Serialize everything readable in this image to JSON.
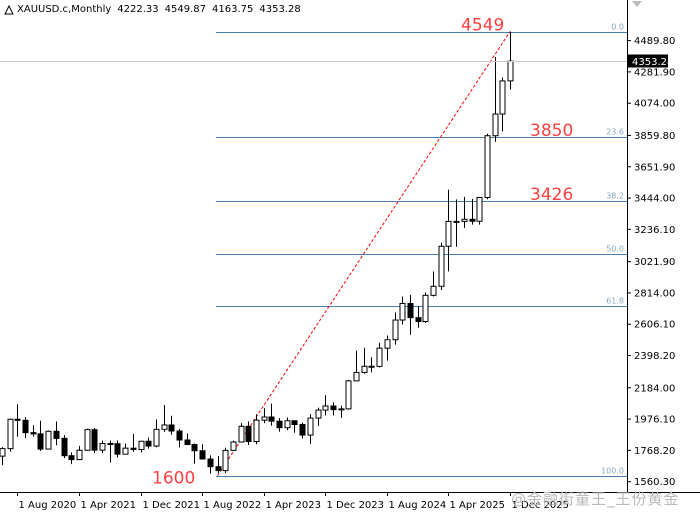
{
  "header": {
    "symbol_timeframe": "XAUUSD.c,Monthly",
    "open": "4222.33",
    "high": "4549.87",
    "low": "4163.75",
    "close": "4353.28"
  },
  "current_price_label": "4353.28",
  "watermark": "@金融街童王_王份黄金",
  "colors": {
    "fib_line": "#4a7fb0",
    "fib_label": "#8aa6c0",
    "trend_line": "#ff0000",
    "annotation": "#ff4040",
    "candle": "#000000",
    "bull_fill": "#ffffff",
    "bear_fill": "#000000",
    "price_marker_bg": "#000000",
    "price_marker_text": "#ffffff"
  },
  "chart_data": {
    "type": "candlestick",
    "timeframe": "Monthly",
    "y_axis_ticks": [
      4489.8,
      4281.9,
      4074.0,
      3859.8,
      3651.9,
      3444.0,
      3236.1,
      3021.9,
      2814.0,
      2606.1,
      2398.2,
      2184.0,
      1976.1,
      1768.2,
      1560.3
    ],
    "x_axis_ticks": [
      "1 Aug 2020",
      "1 Apr 2021",
      "1 Dec 2021",
      "1 Aug 2022",
      "1 Apr 2023",
      "1 Dec 2023",
      "1 Aug 2024",
      "1 Apr 2025",
      "1 Dec 2025"
    ],
    "ylim": [
      1545,
      4600
    ],
    "fibonacci_levels": [
      {
        "level": "0.0",
        "price": 4549
      },
      {
        "level": "23.6",
        "price": 3850
      },
      {
        "level": "38.2",
        "price": 3426
      },
      {
        "level": "50.0",
        "price": 3075
      },
      {
        "level": "61.8",
        "price": 2724
      },
      {
        "level": "100.0",
        "price": 1600
      }
    ],
    "annotations": [
      {
        "text": "4549",
        "price": 4549
      },
      {
        "text": "3850",
        "price": 3850
      },
      {
        "text": "3426",
        "price": 3426
      },
      {
        "text": "1600",
        "price": 1600
      }
    ],
    "trend_line": {
      "from": {
        "x": "Oct 2022",
        "y": 1600
      },
      "to": {
        "x": "Oct 2025",
        "y": 4549
      }
    },
    "candles": [
      {
        "t": "Jun 2020",
        "o": 1730,
        "h": 1790,
        "l": 1670,
        "c": 1780
      },
      {
        "t": "Jul 2020",
        "o": 1780,
        "h": 1980,
        "l": 1760,
        "c": 1975
      },
      {
        "t": "Aug 2020",
        "o": 1975,
        "h": 2075,
        "l": 1860,
        "c": 1968
      },
      {
        "t": "Sep 2020",
        "o": 1968,
        "h": 1990,
        "l": 1850,
        "c": 1886
      },
      {
        "t": "Oct 2020",
        "o": 1886,
        "h": 1935,
        "l": 1860,
        "c": 1878
      },
      {
        "t": "Nov 2020",
        "o": 1878,
        "h": 1965,
        "l": 1765,
        "c": 1777
      },
      {
        "t": "Dec 2020",
        "o": 1777,
        "h": 1900,
        "l": 1775,
        "c": 1895
      },
      {
        "t": "Jan 2021",
        "o": 1895,
        "h": 1960,
        "l": 1802,
        "c": 1848
      },
      {
        "t": "Feb 2021",
        "o": 1848,
        "h": 1870,
        "l": 1717,
        "c": 1733
      },
      {
        "t": "Mar 2021",
        "o": 1733,
        "h": 1755,
        "l": 1677,
        "c": 1707
      },
      {
        "t": "Apr 2021",
        "o": 1707,
        "h": 1798,
        "l": 1705,
        "c": 1769
      },
      {
        "t": "May 2021",
        "o": 1769,
        "h": 1913,
        "l": 1765,
        "c": 1906
      },
      {
        "t": "Jun 2021",
        "o": 1906,
        "h": 1917,
        "l": 1751,
        "c": 1770
      },
      {
        "t": "Jul 2021",
        "o": 1770,
        "h": 1834,
        "l": 1750,
        "c": 1814
      },
      {
        "t": "Aug 2021",
        "o": 1814,
        "h": 1834,
        "l": 1687,
        "c": 1813
      },
      {
        "t": "Sep 2021",
        "o": 1813,
        "h": 1834,
        "l": 1721,
        "c": 1743
      },
      {
        "t": "Oct 2021",
        "o": 1743,
        "h": 1814,
        "l": 1746,
        "c": 1783
      },
      {
        "t": "Nov 2021",
        "o": 1783,
        "h": 1877,
        "l": 1759,
        "c": 1774
      },
      {
        "t": "Dec 2021",
        "o": 1774,
        "h": 1831,
        "l": 1753,
        "c": 1829
      },
      {
        "t": "Jan 2022",
        "o": 1829,
        "h": 1853,
        "l": 1780,
        "c": 1797
      },
      {
        "t": "Feb 2022",
        "o": 1797,
        "h": 1974,
        "l": 1788,
        "c": 1908
      },
      {
        "t": "Mar 2022",
        "o": 1908,
        "h": 2070,
        "l": 1890,
        "c": 1937
      },
      {
        "t": "Apr 2022",
        "o": 1937,
        "h": 1998,
        "l": 1872,
        "c": 1897
      },
      {
        "t": "May 2022",
        "o": 1897,
        "h": 1910,
        "l": 1787,
        "c": 1837
      },
      {
        "t": "Jun 2022",
        "o": 1837,
        "h": 1880,
        "l": 1805,
        "c": 1807
      },
      {
        "t": "Jul 2022",
        "o": 1807,
        "h": 1814,
        "l": 1680,
        "c": 1766
      },
      {
        "t": "Aug 2022",
        "o": 1766,
        "h": 1808,
        "l": 1710,
        "c": 1711
      },
      {
        "t": "Sep 2022",
        "o": 1711,
        "h": 1735,
        "l": 1614,
        "c": 1660
      },
      {
        "t": "Oct 2022",
        "o": 1660,
        "h": 1730,
        "l": 1617,
        "c": 1634
      },
      {
        "t": "Nov 2022",
        "o": 1634,
        "h": 1786,
        "l": 1617,
        "c": 1768
      },
      {
        "t": "Dec 2022",
        "o": 1768,
        "h": 1833,
        "l": 1765,
        "c": 1824
      },
      {
        "t": "Jan 2023",
        "o": 1824,
        "h": 1949,
        "l": 1822,
        "c": 1928
      },
      {
        "t": "Feb 2023",
        "o": 1928,
        "h": 1960,
        "l": 1804,
        "c": 1827
      },
      {
        "t": "Mar 2023",
        "o": 1827,
        "h": 2009,
        "l": 1809,
        "c": 1969
      },
      {
        "t": "Apr 2023",
        "o": 1969,
        "h": 2048,
        "l": 1949,
        "c": 1990
      },
      {
        "t": "May 2023",
        "o": 1990,
        "h": 2079,
        "l": 1933,
        "c": 1962
      },
      {
        "t": "Jun 2023",
        "o": 1962,
        "h": 1983,
        "l": 1893,
        "c": 1919
      },
      {
        "t": "Jul 2023",
        "o": 1919,
        "h": 1987,
        "l": 1902,
        "c": 1965
      },
      {
        "t": "Aug 2023",
        "o": 1965,
        "h": 1966,
        "l": 1885,
        "c": 1940
      },
      {
        "t": "Sep 2023",
        "o": 1940,
        "h": 1953,
        "l": 1848,
        "c": 1870
      },
      {
        "t": "Oct 2023",
        "o": 1870,
        "h": 2009,
        "l": 1810,
        "c": 1983
      },
      {
        "t": "Nov 2023",
        "o": 1983,
        "h": 2052,
        "l": 1931,
        "c": 2036
      },
      {
        "t": "Dec 2023",
        "o": 2036,
        "h": 2135,
        "l": 2000,
        "c": 2063
      },
      {
        "t": "Jan 2024",
        "o": 2063,
        "h": 2088,
        "l": 2001,
        "c": 2039
      },
      {
        "t": "Feb 2024",
        "o": 2039,
        "h": 2065,
        "l": 1984,
        "c": 2044
      },
      {
        "t": "Mar 2024",
        "o": 2044,
        "h": 2236,
        "l": 2039,
        "c": 2230
      },
      {
        "t": "Apr 2024",
        "o": 2230,
        "h": 2431,
        "l": 2229,
        "c": 2286
      },
      {
        "t": "May 2024",
        "o": 2286,
        "h": 2450,
        "l": 2277,
        "c": 2327
      },
      {
        "t": "Jun 2024",
        "o": 2327,
        "h": 2387,
        "l": 2286,
        "c": 2326
      },
      {
        "t": "Jul 2024",
        "o": 2326,
        "h": 2483,
        "l": 2318,
        "c": 2447
      },
      {
        "t": "Aug 2024",
        "o": 2447,
        "h": 2531,
        "l": 2364,
        "c": 2503
      },
      {
        "t": "Sep 2024",
        "o": 2503,
        "h": 2685,
        "l": 2471,
        "c": 2634
      },
      {
        "t": "Oct 2024",
        "o": 2634,
        "h": 2790,
        "l": 2604,
        "c": 2744
      },
      {
        "t": "Nov 2024",
        "o": 2744,
        "h": 2801,
        "l": 2536,
        "c": 2650
      },
      {
        "t": "Dec 2024",
        "o": 2650,
        "h": 2726,
        "l": 2583,
        "c": 2624
      },
      {
        "t": "Jan 2025",
        "o": 2624,
        "h": 2817,
        "l": 2614,
        "c": 2798
      },
      {
        "t": "Feb 2025",
        "o": 2798,
        "h": 2956,
        "l": 2790,
        "c": 2858
      },
      {
        "t": "Mar 2025",
        "o": 2858,
        "h": 3148,
        "l": 2833,
        "c": 3124
      },
      {
        "t": "Apr 2025",
        "o": 3124,
        "h": 3500,
        "l": 2957,
        "c": 3289
      },
      {
        "t": "May 2025",
        "o": 3289,
        "h": 3435,
        "l": 3121,
        "c": 3289
      },
      {
        "t": "Jun 2025",
        "o": 3289,
        "h": 3452,
        "l": 3246,
        "c": 3303
      },
      {
        "t": "Jul 2025",
        "o": 3303,
        "h": 3439,
        "l": 3268,
        "c": 3290
      },
      {
        "t": "Aug 2025",
        "o": 3290,
        "h": 3451,
        "l": 3268,
        "c": 3448
      },
      {
        "t": "Sep 2025",
        "o": 3448,
        "h": 3871,
        "l": 3436,
        "c": 3858
      },
      {
        "t": "Oct 2025",
        "o": 3858,
        "h": 4381,
        "l": 3817,
        "c": 4002
      },
      {
        "t": "Nov 2025",
        "o": 4002,
        "h": 4245,
        "l": 3886,
        "c": 4222
      },
      {
        "t": "Dec 2025",
        "o": 4222.33,
        "h": 4549.87,
        "l": 4163.75,
        "c": 4353.28
      }
    ]
  }
}
